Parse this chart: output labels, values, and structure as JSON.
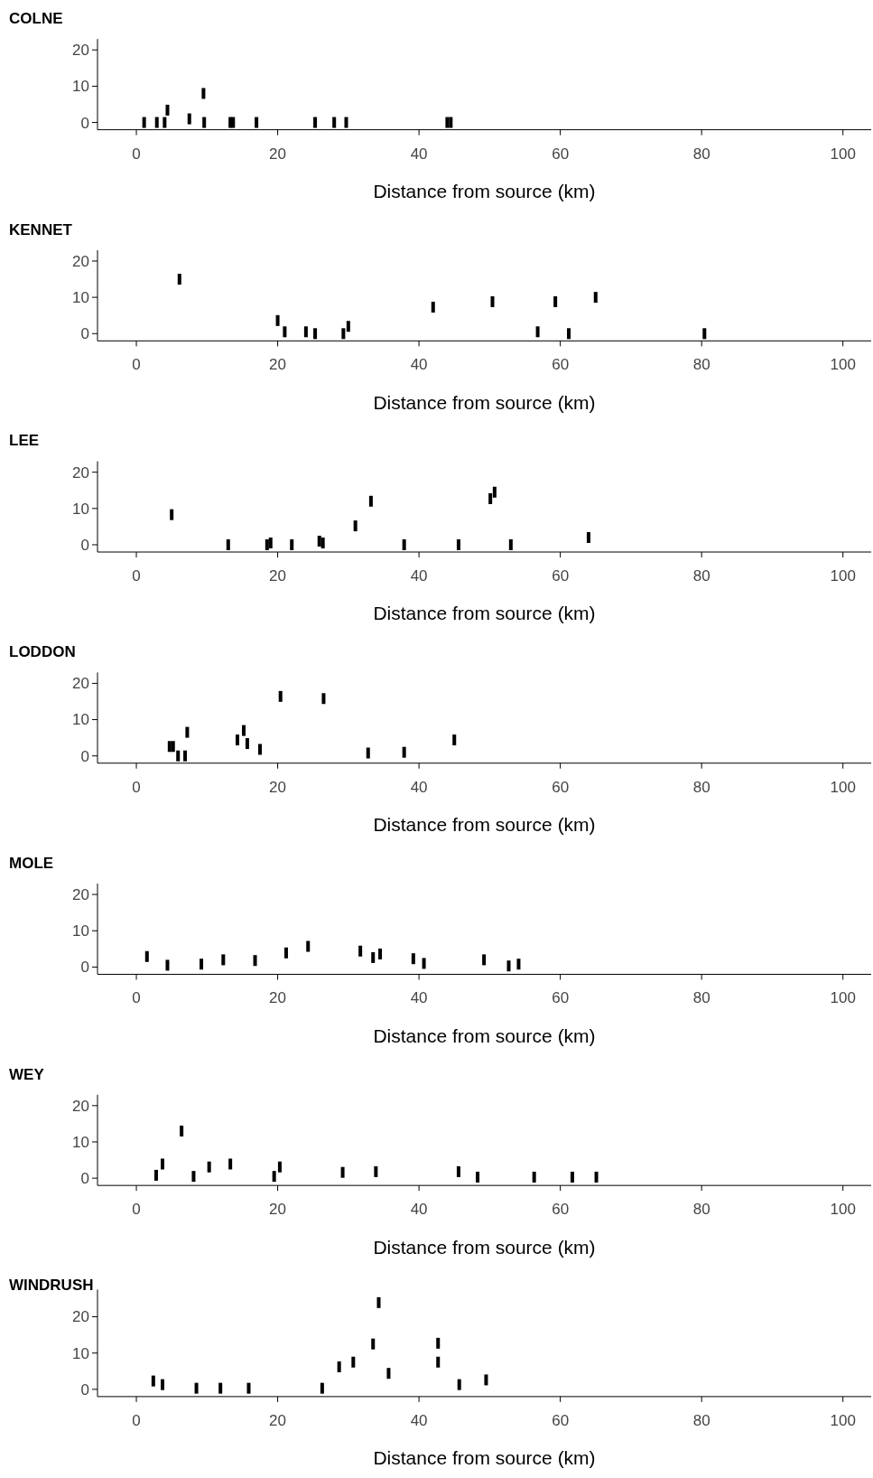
{
  "chart_data": [
    {
      "type": "scatter",
      "title": "COLNE",
      "xlabel": "Distance from source (km)",
      "xlim": [
        -5.5,
        104
      ],
      "ylim": [
        -2,
        23
      ],
      "xticks": [
        0,
        20,
        40,
        60,
        80,
        100
      ],
      "yticks": [
        0,
        10,
        20
      ],
      "series": [
        {
          "color": "#000000",
          "x": [
            1.1,
            2.9,
            4,
            4.4,
            7.5,
            9.5,
            9.6,
            13.3,
            13.7,
            17,
            25.3,
            28,
            29.7,
            44,
            44.5
          ],
          "values": [
            0,
            0,
            0,
            3.4,
            1,
            8,
            0,
            0,
            0,
            0,
            0,
            0,
            0,
            0,
            0
          ]
        }
      ]
    },
    {
      "type": "scatter",
      "title": "KENNET",
      "xlabel": "Distance from source (km)",
      "xlim": [
        -5.5,
        104
      ],
      "ylim": [
        -2,
        23
      ],
      "xticks": [
        0,
        20,
        40,
        60,
        80,
        100
      ],
      "yticks": [
        0,
        10,
        20
      ],
      "series": [
        {
          "color": "#000000",
          "x": [
            6.1,
            20,
            21,
            24,
            25.3,
            29.3,
            30,
            42,
            50.4,
            56.8,
            59.3,
            61.2,
            65,
            80.4
          ],
          "values": [
            15,
            3.6,
            0.5,
            0.5,
            0,
            0,
            2,
            7.3,
            8.8,
            0.5,
            8.8,
            0,
            10,
            0
          ]
        }
      ]
    },
    {
      "type": "scatter",
      "title": "LEE",
      "xlabel": "Distance from source (km)",
      "xlim": [
        -5.5,
        104
      ],
      "ylim": [
        -2,
        23
      ],
      "xticks": [
        0,
        20,
        40,
        60,
        80,
        100
      ],
      "yticks": [
        0,
        10,
        20
      ],
      "series": [
        {
          "color": "#000000",
          "x": [
            5,
            13,
            18.5,
            19,
            22,
            25.9,
            26.4,
            31,
            33.2,
            37.9,
            45.6,
            50.1,
            50.7,
            53,
            64
          ],
          "values": [
            8.3,
            0,
            0,
            0.5,
            0,
            1,
            0.5,
            5.2,
            12,
            0,
            0,
            12.7,
            14.5,
            0,
            2
          ]
        }
      ]
    },
    {
      "type": "scatter",
      "title": "LODDON",
      "xlabel": "Distance from source (km)",
      "xlim": [
        -5.5,
        104
      ],
      "ylim": [
        -2,
        23
      ],
      "xticks": [
        0,
        20,
        40,
        60,
        80,
        100
      ],
      "yticks": [
        0,
        10,
        20
      ],
      "series": [
        {
          "color": "#000000",
          "x": [
            4.7,
            5.2,
            5.9,
            6.9,
            7.2,
            14.3,
            15.2,
            15.7,
            17.5,
            20.4,
            26.5,
            32.8,
            37.9,
            45
          ],
          "values": [
            2.6,
            2.6,
            0,
            0,
            6.5,
            4.4,
            7,
            3.4,
            1.8,
            16.4,
            15.8,
            0.8,
            1,
            4.4
          ]
        }
      ]
    },
    {
      "type": "scatter",
      "title": "MOLE",
      "xlabel": "Distance from source (km)",
      "xlim": [
        -5.5,
        104
      ],
      "ylim": [
        -2,
        23
      ],
      "xticks": [
        0,
        20,
        40,
        60,
        80,
        100
      ],
      "yticks": [
        0,
        10,
        20
      ],
      "series": [
        {
          "color": "#000000",
          "x": [
            1.5,
            4.4,
            9.2,
            12.3,
            16.8,
            21.2,
            24.3,
            31.7,
            33.5,
            34.5,
            39.2,
            40.7,
            49.2,
            52.7,
            54.1
          ],
          "values": [
            2.9,
            0.5,
            0.8,
            2,
            1.8,
            3.9,
            5.7,
            4.4,
            2.6,
            3.6,
            2.3,
            1,
            2,
            0.3,
            0.8
          ]
        }
      ]
    },
    {
      "type": "scatter",
      "title": "WEY",
      "xlabel": "Distance from source (km)",
      "xlim": [
        -5.5,
        104
      ],
      "ylim": [
        -2,
        23
      ],
      "xticks": [
        0,
        20,
        40,
        60,
        80,
        100
      ],
      "yticks": [
        0,
        10,
        20
      ],
      "series": [
        {
          "color": "#000000",
          "x": [
            2.8,
            3.7,
            6.4,
            8.1,
            10.3,
            13.3,
            19.5,
            20.3,
            29.2,
            33.9,
            45.6,
            48.3,
            56.3,
            61.7,
            65.1
          ],
          "values": [
            0.8,
            3.9,
            13,
            0.5,
            3.1,
            3.9,
            0.5,
            3.1,
            1.6,
            1.8,
            1.8,
            0.3,
            0.3,
            0.3,
            0.3
          ]
        }
      ]
    },
    {
      "type": "scatter",
      "title": "WINDRUSH",
      "xlabel": "Distance from source (km)",
      "xlim": [
        -5.5,
        104
      ],
      "ylim": [
        -2,
        27.5
      ],
      "xticks": [
        0,
        20,
        40,
        60,
        80,
        100
      ],
      "yticks": [
        0,
        10,
        20
      ],
      "series": [
        {
          "color": "#000000",
          "x": [
            2.4,
            3.7,
            8.5,
            11.9,
            15.9,
            26.3,
            28.7,
            30.7,
            33.5,
            34.3,
            35.7,
            42.7,
            42.7,
            45.7,
            49.5
          ],
          "values": [
            2.3,
            1.3,
            0.3,
            0.3,
            0.3,
            0.3,
            6.2,
            7.5,
            12.5,
            23.9,
            4.4,
            12.7,
            7.5,
            1.3,
            2.6
          ]
        }
      ]
    }
  ]
}
